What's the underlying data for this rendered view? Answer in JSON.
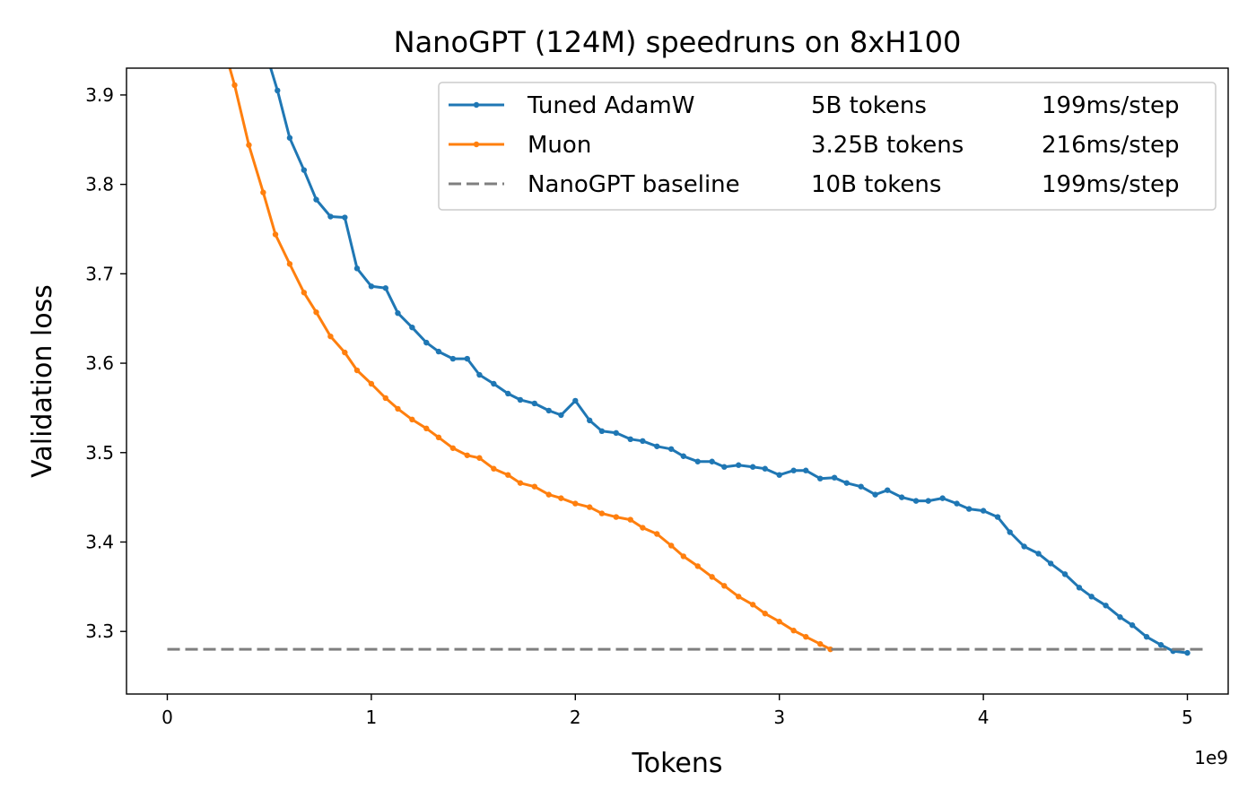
{
  "chart_data": {
    "type": "line",
    "title": "NanoGPT (124M) speedruns on 8xH100",
    "xlabel": "Tokens",
    "ylabel": "Validation loss",
    "x_offset_label": "1e9",
    "x_scale_factor": 1000000000,
    "xlim": [
      -0.2,
      5.2
    ],
    "ylim": [
      3.23,
      3.93
    ],
    "xticks": [
      0,
      1,
      2,
      3,
      4,
      5
    ],
    "xtick_labels": [
      "0",
      "1",
      "2",
      "3",
      "4",
      "5"
    ],
    "yticks": [
      3.3,
      3.4,
      3.5,
      3.6,
      3.7,
      3.8,
      3.9
    ],
    "ytick_labels": [
      "3.3",
      "3.4",
      "3.5",
      "3.6",
      "3.7",
      "3.8",
      "3.9"
    ],
    "grid": false,
    "legend_position": "top-right",
    "series": [
      {
        "name": "Tuned AdamW",
        "legend_col2": "5B tokens",
        "legend_col3": "199ms/step",
        "color": "#1f77b4",
        "style": "solid",
        "markers": true,
        "x": [
          0.5,
          0.54,
          0.6,
          0.67,
          0.73,
          0.8,
          0.87,
          0.93,
          1.0,
          1.07,
          1.13,
          1.2,
          1.27,
          1.33,
          1.4,
          1.47,
          1.53,
          1.6,
          1.67,
          1.73,
          1.8,
          1.87,
          1.93,
          2.0,
          2.07,
          2.13,
          2.2,
          2.27,
          2.33,
          2.4,
          2.47,
          2.53,
          2.6,
          2.67,
          2.73,
          2.8,
          2.87,
          2.93,
          3.0,
          3.07,
          3.13,
          3.2,
          3.27,
          3.33,
          3.4,
          3.47,
          3.53,
          3.6,
          3.67,
          3.73,
          3.8,
          3.87,
          3.93,
          4.0,
          4.07,
          4.13,
          4.2,
          4.27,
          4.33,
          4.4,
          4.47,
          4.53,
          4.6,
          4.67,
          4.73,
          4.8,
          4.87,
          4.93,
          5.0
        ],
        "y": [
          3.935,
          3.905,
          3.852,
          3.816,
          3.783,
          3.764,
          3.763,
          3.706,
          3.686,
          3.684,
          3.656,
          3.64,
          3.623,
          3.613,
          3.605,
          3.605,
          3.587,
          3.577,
          3.566,
          3.559,
          3.555,
          3.547,
          3.542,
          3.558,
          3.536,
          3.524,
          3.522,
          3.515,
          3.513,
          3.507,
          3.504,
          3.496,
          3.49,
          3.49,
          3.484,
          3.486,
          3.484,
          3.482,
          3.475,
          3.48,
          3.48,
          3.471,
          3.472,
          3.466,
          3.462,
          3.453,
          3.458,
          3.45,
          3.446,
          3.446,
          3.449,
          3.443,
          3.437,
          3.435,
          3.428,
          3.411,
          3.395,
          3.387,
          3.376,
          3.364,
          3.349,
          3.339,
          3.329,
          3.316,
          3.307,
          3.294,
          3.285,
          3.278,
          3.276
        ]
      },
      {
        "name": "Muon",
        "legend_col2": "3.25B tokens",
        "legend_col3": "216ms/step",
        "color": "#ff7f0e",
        "style": "solid",
        "markers": true,
        "x": [
          0.3,
          0.33,
          0.4,
          0.47,
          0.53,
          0.6,
          0.67,
          0.73,
          0.8,
          0.87,
          0.93,
          1.0,
          1.07,
          1.13,
          1.2,
          1.27,
          1.33,
          1.4,
          1.47,
          1.53,
          1.6,
          1.67,
          1.73,
          1.8,
          1.87,
          1.93,
          2.0,
          2.07,
          2.13,
          2.2,
          2.27,
          2.33,
          2.4,
          2.47,
          2.53,
          2.6,
          2.67,
          2.73,
          2.8,
          2.87,
          2.93,
          3.0,
          3.07,
          3.13,
          3.2,
          3.25
        ],
        "y": [
          3.935,
          3.911,
          3.844,
          3.791,
          3.744,
          3.711,
          3.679,
          3.657,
          3.63,
          3.612,
          3.592,
          3.577,
          3.561,
          3.549,
          3.537,
          3.527,
          3.517,
          3.505,
          3.497,
          3.494,
          3.482,
          3.475,
          3.466,
          3.462,
          3.453,
          3.449,
          3.443,
          3.439,
          3.432,
          3.428,
          3.425,
          3.416,
          3.409,
          3.396,
          3.384,
          3.373,
          3.361,
          3.351,
          3.339,
          3.33,
          3.32,
          3.311,
          3.301,
          3.294,
          3.286,
          3.28
        ]
      },
      {
        "name": "NanoGPT baseline",
        "legend_col2": "10B tokens",
        "legend_col3": "199ms/step",
        "color": "#7f7f7f",
        "style": "dashed",
        "markers": false,
        "x": [
          0,
          5.1
        ],
        "y": [
          3.28,
          3.28
        ]
      }
    ]
  }
}
